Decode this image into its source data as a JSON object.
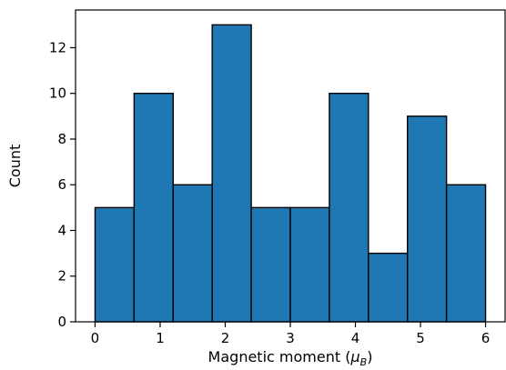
{
  "chart_data": {
    "type": "bar",
    "subtype": "histogram",
    "title": "",
    "xlabel": "Magnetic moment (",
    "xlabel_symbol": "μ",
    "xlabel_subscript": "B",
    "xlabel_suffix": ")",
    "ylabel": "Count",
    "bins": [
      {
        "start": 0.0,
        "end": 0.6,
        "value": 5
      },
      {
        "start": 0.6,
        "end": 1.2,
        "value": 10
      },
      {
        "start": 1.2,
        "end": 1.8,
        "value": 6
      },
      {
        "start": 1.8,
        "end": 2.4,
        "value": 13
      },
      {
        "start": 2.4,
        "end": 3.0,
        "value": 5
      },
      {
        "start": 3.0,
        "end": 3.6,
        "value": 5
      },
      {
        "start": 3.6,
        "end": 4.2,
        "value": 10
      },
      {
        "start": 4.2,
        "end": 4.8,
        "value": 3
      },
      {
        "start": 4.8,
        "end": 5.4,
        "value": 9
      },
      {
        "start": 5.4,
        "end": 6.0,
        "value": 6
      }
    ],
    "xlim": [
      -0.3,
      6.3
    ],
    "ylim": [
      0,
      13.65
    ],
    "xticks": [
      0,
      1,
      2,
      3,
      4,
      5,
      6
    ],
    "yticks": [
      0,
      2,
      4,
      6,
      8,
      10,
      12
    ],
    "grid": false,
    "bar_color": "#1f77b4",
    "edge_color": "#000000"
  }
}
